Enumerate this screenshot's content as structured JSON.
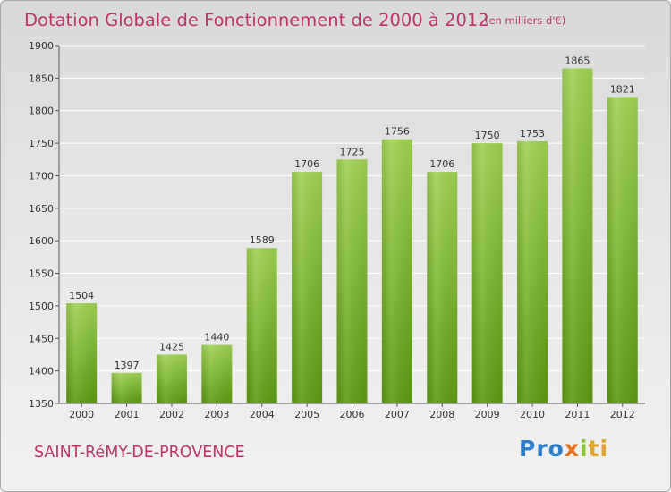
{
  "title": "Dotation Globale de Fonctionnement de 2000 à 2012",
  "subtitle": "(en milliers d'€)",
  "city": "SAINT-RéMY-DE-PROVENCE",
  "logo": {
    "part1": "Pro",
    "part2": "x",
    "part3": "i",
    "part4": "ti"
  },
  "colors": {
    "title": "#c0336a",
    "bar_light": "#9fd352",
    "bar_dark": "#5c9a12",
    "grid": "#ffffff",
    "axis": "#555555"
  },
  "chart_data": {
    "type": "bar",
    "title": "Dotation Globale de Fonctionnement de 2000 à 2012",
    "subtitle": "(en milliers d'€)",
    "xlabel": "",
    "ylabel": "",
    "categories": [
      "2000",
      "2001",
      "2002",
      "2003",
      "2004",
      "2005",
      "2006",
      "2007",
      "2008",
      "2009",
      "2010",
      "2011",
      "2012"
    ],
    "values": [
      1504,
      1397,
      1425,
      1440,
      1589,
      1706,
      1725,
      1756,
      1706,
      1750,
      1753,
      1865,
      1821
    ],
    "ylim": [
      1350,
      1900
    ],
    "yticks": [
      1350,
      1400,
      1450,
      1500,
      1550,
      1600,
      1650,
      1700,
      1750,
      1800,
      1850,
      1900
    ],
    "grid": true,
    "data_labels": true
  }
}
